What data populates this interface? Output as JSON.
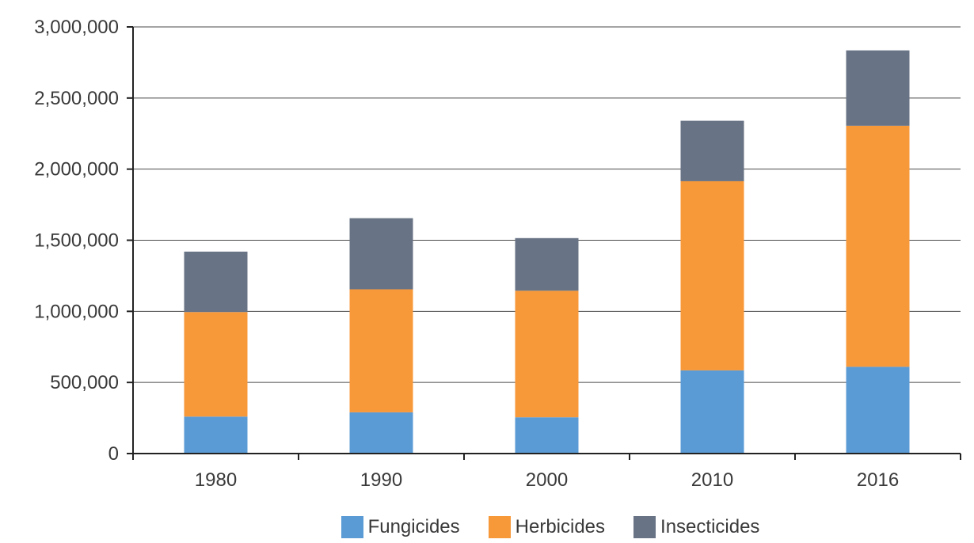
{
  "chart_data": {
    "type": "bar",
    "stacked": true,
    "categories": [
      "1980",
      "1990",
      "2000",
      "2010",
      "2016"
    ],
    "series": [
      {
        "name": "Fungicides",
        "color": "#5b9bd5",
        "values": [
          260000,
          290000,
          255000,
          585000,
          610000
        ]
      },
      {
        "name": "Herbicides",
        "color": "#f79839",
        "values": [
          735000,
          865000,
          890000,
          1330000,
          1695000
        ]
      },
      {
        "name": "Insecticides",
        "color": "#687385",
        "values": [
          425000,
          500000,
          370000,
          425000,
          530000
        ]
      }
    ],
    "title": "",
    "xlabel": "",
    "ylabel": "",
    "ylim": [
      0,
      3000000
    ],
    "yticks": [
      0,
      500000,
      1000000,
      1500000,
      2000000,
      2500000,
      3000000
    ],
    "ytick_labels": [
      "0",
      "500,000",
      "1,000,000",
      "1,500,000",
      "2,000,000",
      "2,500,000",
      "3,000,000"
    ],
    "grid": true,
    "legend_position": "bottom"
  }
}
